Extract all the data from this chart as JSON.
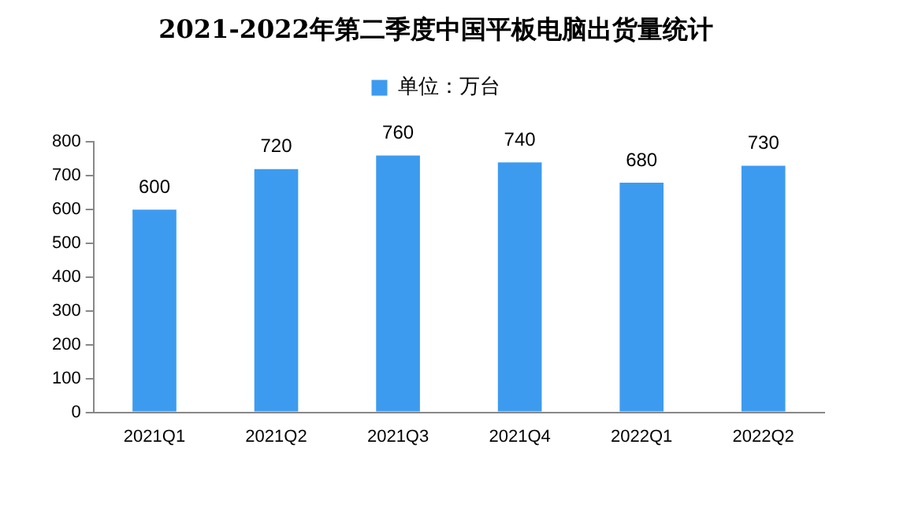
{
  "chart_data": {
    "type": "bar",
    "title": "2021-2022年第二季度中国平板电脑出货量统计",
    "categories": [
      "2021Q1",
      "2021Q2",
      "2021Q3",
      "2021Q4",
      "2022Q1",
      "2022Q2"
    ],
    "series": [
      {
        "name": "单位：万台",
        "color": "#3d9bef",
        "values": [
          600,
          720,
          760,
          740,
          680,
          730
        ]
      }
    ],
    "ylim": [
      0,
      800
    ],
    "yticks": [
      0,
      100,
      200,
      300,
      400,
      500,
      600,
      700,
      800
    ],
    "grid": false,
    "legend": "top",
    "data_labels": true
  }
}
